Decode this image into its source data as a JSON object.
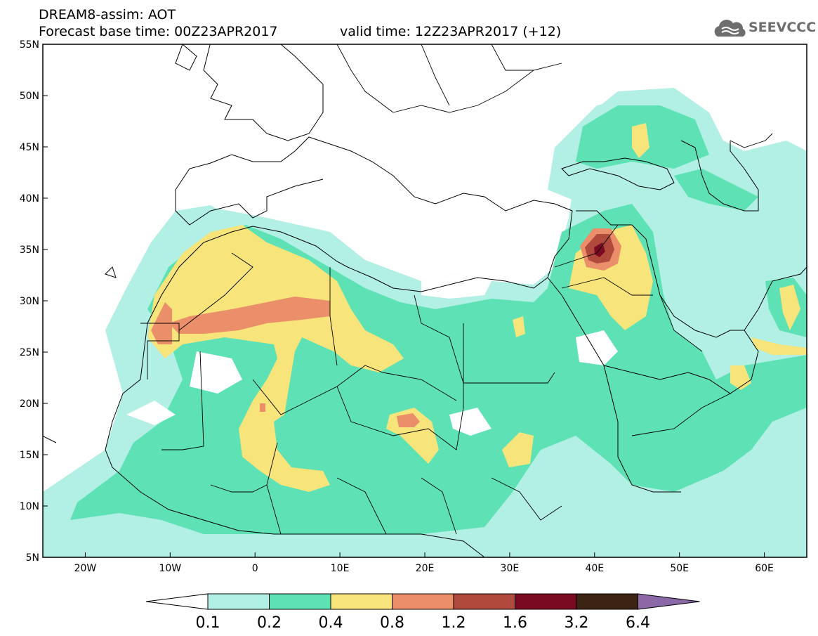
{
  "header": {
    "title_line1": "DREAM8-assim: AOT",
    "title_line2": "Forecast base time: 00Z23APR2017",
    "valid_time": "valid time: 12Z23APR2017 (+12)",
    "logo_text": "SEEVCCC",
    "logo_icon": "cloud-icon"
  },
  "map": {
    "lon_range": [
      -25,
      65
    ],
    "lat_range": [
      5,
      55
    ],
    "lat_ticks": [
      {
        "value": 55,
        "label": "55N"
      },
      {
        "value": 50,
        "label": "50N"
      },
      {
        "value": 45,
        "label": "45N"
      },
      {
        "value": 40,
        "label": "40N"
      },
      {
        "value": 35,
        "label": "35N"
      },
      {
        "value": 30,
        "label": "30N"
      },
      {
        "value": 25,
        "label": "25N"
      },
      {
        "value": 20,
        "label": "20N"
      },
      {
        "value": 15,
        "label": "15N"
      },
      {
        "value": 10,
        "label": "10N"
      },
      {
        "value": 5,
        "label": "5N"
      }
    ],
    "lon_ticks": [
      {
        "value": -20,
        "label": "20W"
      },
      {
        "value": -10,
        "label": "10W"
      },
      {
        "value": 0,
        "label": "0"
      },
      {
        "value": 10,
        "label": "10E"
      },
      {
        "value": 20,
        "label": "20E"
      },
      {
        "value": 30,
        "label": "30E"
      },
      {
        "value": 40,
        "label": "40E"
      },
      {
        "value": 50,
        "label": "50E"
      },
      {
        "value": 60,
        "label": "60E"
      }
    ]
  },
  "colorbar": {
    "labels": [
      "0.1",
      "0.2",
      "0.4",
      "0.8",
      "1.2",
      "1.6",
      "3.2",
      "6.4"
    ],
    "colors": [
      "#b2efe4",
      "#5ee1b4",
      "#f7e47a",
      "#eb8e6a",
      "#b04a3c",
      "#7a0a22",
      "#3b2414"
    ],
    "under_color": "#ffffff",
    "over_color": "#8a69a6"
  },
  "colors": {
    "aot_01": "#b2efe4",
    "aot_02": "#5ee1b4",
    "aot_04": "#f7e47a",
    "aot_08": "#eb8e6a",
    "aot_12": "#b04a3c",
    "aot_16": "#7a0a22",
    "aot_32": "#3b2414"
  }
}
